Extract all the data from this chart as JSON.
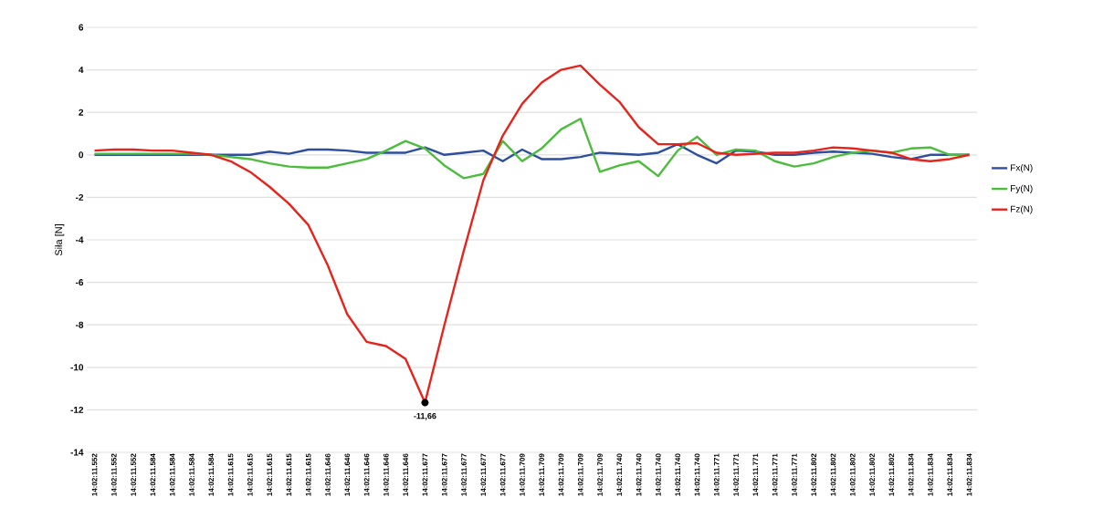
{
  "chart_data": {
    "type": "line",
    "ylabel": "Siła [N]",
    "categories": [
      "14:02:11.552",
      "14:02:11.552",
      "14:02:11.552",
      "14:02:11.584",
      "14:02:11.584",
      "14:02:11.584",
      "14:02:11.584",
      "14:02:11.615",
      "14:02:11.615",
      "14:02:11.615",
      "14:02:11.615",
      "14:02:11.615",
      "14:02:11.646",
      "14:02:11.646",
      "14:02:11.646",
      "14:02:11.646",
      "14:02:11.646",
      "14:02:11.677",
      "14:02:11.677",
      "14:02:11.677",
      "14:02:11.677",
      "14:02:11.677",
      "14:02:11.709",
      "14:02:11.709",
      "14:02:11.709",
      "14:02:11.709",
      "14:02:11.709",
      "14:02:11.740",
      "14:02:11.740",
      "14:02:11.740",
      "14:02:11.740",
      "14:02:11.740",
      "14:02:11.771",
      "14:02:11.771",
      "14:02:11.771",
      "14:02:11.771",
      "14:02:11.771",
      "14:02:11.802",
      "14:02:11.802",
      "14:02:11.802",
      "14:02:11.802",
      "14:02:11.802",
      "14:02:11.834",
      "14:02:11.834",
      "14:02:11.834",
      "14:02:11.834"
    ],
    "series": [
      {
        "name": "Fx(N)",
        "color": "#2e4e9e",
        "values": [
          0,
          0,
          0,
          0,
          0,
          0,
          0,
          0,
          0,
          0.15,
          0.05,
          0.25,
          0.25,
          0.2,
          0.1,
          0.1,
          0.1,
          0.35,
          0,
          0.1,
          0.2,
          -0.3,
          0.25,
          -0.2,
          -0.2,
          -0.1,
          0.1,
          0.05,
          0,
          0.1,
          0.5,
          0,
          -0.4,
          0.2,
          0.15,
          0,
          0,
          0.1,
          0.15,
          0.1,
          0.05,
          -0.1,
          -0.2,
          0,
          0,
          0
        ]
      },
      {
        "name": "Fy(N)",
        "color": "#4cbc3c",
        "values": [
          0.05,
          0.05,
          0.05,
          0.05,
          0.05,
          0.05,
          0,
          -0.1,
          -0.2,
          -0.4,
          -0.55,
          -0.6,
          -0.6,
          -0.4,
          -0.2,
          0.2,
          0.65,
          0.3,
          -0.5,
          -1.1,
          -0.9,
          0.65,
          -0.3,
          0.3,
          1.2,
          1.7,
          -0.8,
          -0.5,
          -0.3,
          -1.0,
          0.2,
          0.85,
          0,
          0.25,
          0.2,
          -0.3,
          -0.55,
          -0.4,
          -0.1,
          0.1,
          0.2,
          0.1,
          0.3,
          0.35,
          0,
          0
        ]
      },
      {
        "name": "Fz(N)",
        "color": "#e8231c",
        "values": [
          0.2,
          0.25,
          0.25,
          0.2,
          0.2,
          0.1,
          0,
          -0.3,
          -0.8,
          -1.5,
          -2.3,
          -3.3,
          -5.2,
          -7.5,
          -8.8,
          -9.0,
          -9.6,
          -11.66,
          -8.0,
          -4.5,
          -1.2,
          0.9,
          2.4,
          3.4,
          4.0,
          4.2,
          3.3,
          2.5,
          1.3,
          0.5,
          0.5,
          0.55,
          0.1,
          0,
          0.05,
          0.1,
          0.1,
          0.2,
          0.35,
          0.3,
          0.2,
          0.1,
          -0.2,
          -0.3,
          -0.2,
          0
        ],
        "value_labels": [
          null,
          null,
          null,
          null,
          null,
          null,
          null,
          null,
          null,
          null,
          null,
          null,
          null,
          null,
          null,
          null,
          null,
          "-11,66",
          null,
          null,
          null,
          null,
          null,
          null,
          null,
          null,
          null,
          null,
          null,
          null,
          null,
          null,
          null,
          null,
          null,
          null,
          null,
          null,
          null,
          null,
          null,
          null,
          null,
          null,
          null,
          null
        ]
      }
    ],
    "ylim": [
      -14,
      6
    ],
    "yticks": [
      -14,
      -12,
      -10,
      -8,
      -6,
      -4,
      -2,
      0,
      2,
      4,
      6
    ],
    "grid": "y",
    "legend": "right"
  }
}
